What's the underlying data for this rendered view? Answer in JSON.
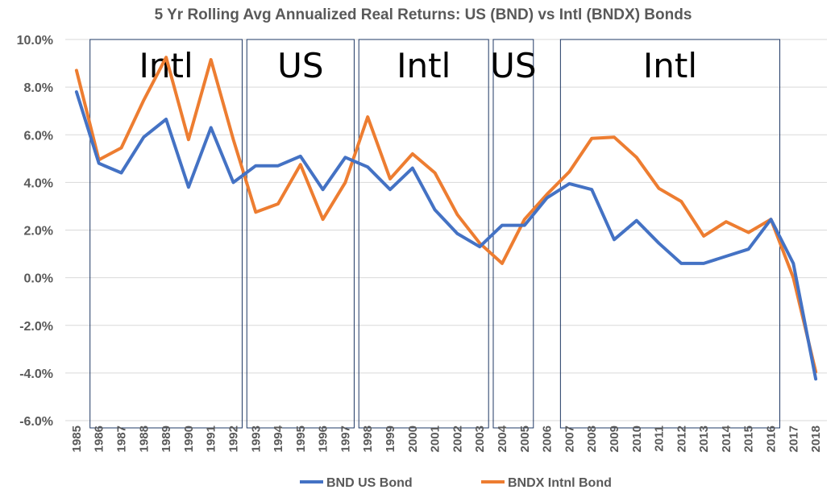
{
  "chart_data": {
    "type": "line",
    "title": "5 Yr Rolling Avg Annualized Real Returns: US (BND) vs Intl (BNDX) Bonds",
    "xlabel": "",
    "ylabel": "",
    "ylim": [
      -6,
      10
    ],
    "yticks": [
      10,
      8,
      6,
      4,
      2,
      0,
      -2,
      -4,
      -6
    ],
    "ytick_labels": [
      "10.0%",
      "8.0%",
      "6.0%",
      "4.0%",
      "2.0%",
      "0.0%",
      "-2.0%",
      "-4.0%",
      "-6.0%"
    ],
    "x": [
      "1985",
      "1986",
      "1987",
      "1988",
      "1989",
      "1990",
      "1991",
      "1992",
      "1993",
      "1994",
      "1995",
      "1996",
      "1997",
      "1998",
      "1999",
      "2000",
      "2001",
      "2002",
      "2003",
      "2004",
      "2005",
      "2006",
      "2007",
      "2008",
      "2009",
      "2010",
      "2011",
      "2012",
      "2013",
      "2014",
      "2015",
      "2016",
      "2017",
      "2018"
    ],
    "grid": true,
    "legend_position": "bottom",
    "series": [
      {
        "name": "BND US Bond",
        "color": "#4472c4",
        "values": [
          7.8,
          4.8,
          4.4,
          5.9,
          6.65,
          3.8,
          6.3,
          4.0,
          4.7,
          4.7,
          5.1,
          3.7,
          5.05,
          4.65,
          3.7,
          4.6,
          2.85,
          1.85,
          1.3,
          2.2,
          2.2,
          3.35,
          3.95,
          3.7,
          1.6,
          2.4,
          1.45,
          0.6,
          0.6,
          0.9,
          1.2,
          2.45,
          0.6,
          -4.25
        ]
      },
      {
        "name": "BNDX Intnl Bond",
        "color": "#ed7d31",
        "values": [
          8.7,
          4.95,
          5.45,
          7.45,
          9.25,
          5.8,
          9.15,
          5.8,
          2.75,
          3.1,
          4.75,
          2.45,
          4.0,
          6.75,
          4.15,
          5.2,
          4.4,
          2.65,
          1.45,
          0.6,
          2.45,
          3.5,
          4.45,
          5.85,
          5.9,
          5.05,
          3.75,
          3.2,
          1.75,
          2.35,
          1.9,
          2.45,
          0.0,
          -3.95
        ]
      }
    ],
    "annotations": [
      {
        "label": "Intl",
        "from": "1986",
        "to": "1992"
      },
      {
        "label": "US",
        "from": "1993",
        "to": "1997"
      },
      {
        "label": "Intl",
        "from": "1998",
        "to": "2003"
      },
      {
        "label": "US",
        "from": "2004",
        "to": "2005"
      },
      {
        "label": "Intl",
        "from": "2007",
        "to": "2016"
      }
    ]
  }
}
